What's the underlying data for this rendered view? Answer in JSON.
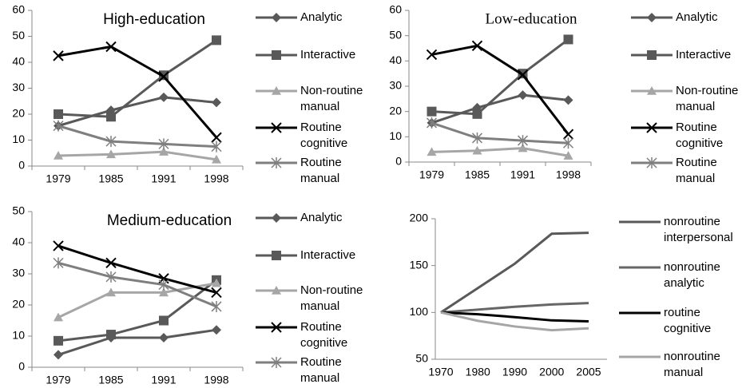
{
  "chart_data": [
    {
      "type": "line",
      "title": "High-education",
      "categories": [
        "1979",
        "1985",
        "1991",
        "1998"
      ],
      "ylim": [
        0,
        60
      ],
      "yticks": [
        0,
        10,
        20,
        30,
        40,
        50,
        60
      ],
      "series": [
        {
          "name": "Analytic",
          "color": "#595959",
          "marker": "diamond",
          "values": [
            15.5,
            21.5,
            26.5,
            24.5
          ]
        },
        {
          "name": "Interactive",
          "color": "#595959",
          "marker": "square",
          "values": [
            20,
            19,
            35,
            48.5
          ]
        },
        {
          "name": "Non-routine manual",
          "color": "#a6a6a6",
          "marker": "triangle",
          "values": [
            4,
            4.5,
            5.5,
            2.5
          ]
        },
        {
          "name": "Routine cognitive",
          "color": "#000000",
          "marker": "x",
          "values": [
            42.5,
            46,
            34.5,
            11
          ]
        },
        {
          "name": "Routine manual",
          "color": "#7f7f7f",
          "marker": "asterisk",
          "values": [
            15.5,
            9.5,
            8.5,
            7.5
          ]
        }
      ]
    },
    {
      "type": "line",
      "title": "Low-education",
      "categories": [
        "1979",
        "1985",
        "1991",
        "1998"
      ],
      "ylim": [
        0,
        60
      ],
      "yticks": [
        0,
        10,
        20,
        30,
        40,
        50,
        60
      ],
      "series": [
        {
          "name": "Analytic",
          "color": "#595959",
          "marker": "diamond",
          "values": [
            15.5,
            21.5,
            26.5,
            24.5
          ]
        },
        {
          "name": "Interactive",
          "color": "#595959",
          "marker": "square",
          "values": [
            20,
            19,
            35,
            48.5
          ]
        },
        {
          "name": "Non-routine manual",
          "color": "#a6a6a6",
          "marker": "triangle",
          "values": [
            4,
            4.5,
            5.5,
            2.5
          ]
        },
        {
          "name": "Routine cognitive",
          "color": "#000000",
          "marker": "x",
          "values": [
            42.5,
            46,
            34.5,
            11
          ]
        },
        {
          "name": "Routine manual",
          "color": "#7f7f7f",
          "marker": "asterisk",
          "values": [
            15.5,
            9.5,
            8.5,
            7.5
          ]
        }
      ]
    },
    {
      "type": "line",
      "title": "Medium-education",
      "categories": [
        "1979",
        "1985",
        "1991",
        "1998"
      ],
      "ylim": [
        0,
        50
      ],
      "yticks": [
        0,
        10,
        20,
        30,
        40,
        50
      ],
      "series": [
        {
          "name": "Analytic",
          "color": "#595959",
          "marker": "diamond",
          "values": [
            4,
            9.5,
            9.5,
            12
          ]
        },
        {
          "name": "Interactive",
          "color": "#595959",
          "marker": "square",
          "values": [
            8.5,
            10.5,
            15,
            28
          ]
        },
        {
          "name": "Non-routine manual",
          "color": "#a6a6a6",
          "marker": "triangle",
          "values": [
            16,
            24,
            24,
            27
          ]
        },
        {
          "name": "Routine cognitive",
          "color": "#000000",
          "marker": "x",
          "values": [
            39,
            33.5,
            28.5,
            24
          ]
        },
        {
          "name": "Routine manual",
          "color": "#7f7f7f",
          "marker": "asterisk",
          "values": [
            33.5,
            29,
            26.5,
            19.5
          ]
        }
      ]
    },
    {
      "type": "line",
      "categories": [
        "1970",
        "1980",
        "1990",
        "2000",
        "2005"
      ],
      "ylim": [
        50,
        200
      ],
      "yticks": [
        50,
        100,
        150,
        200
      ],
      "series": [
        {
          "name": "nonroutine interpersonal",
          "color": "#595959",
          "values": [
            100,
            126,
            152,
            184,
            185
          ]
        },
        {
          "name": "nonroutine analytic",
          "color": "#666666",
          "values": [
            100,
            103,
            106,
            108.5,
            110
          ]
        },
        {
          "name": "routine cognitive",
          "color": "#000000",
          "values": [
            100,
            98,
            95,
            91.5,
            90.5
          ]
        },
        {
          "name": "nonroutine manual",
          "color": "#a6a6a6",
          "values": [
            100,
            91,
            85,
            81,
            83
          ]
        }
      ]
    }
  ]
}
